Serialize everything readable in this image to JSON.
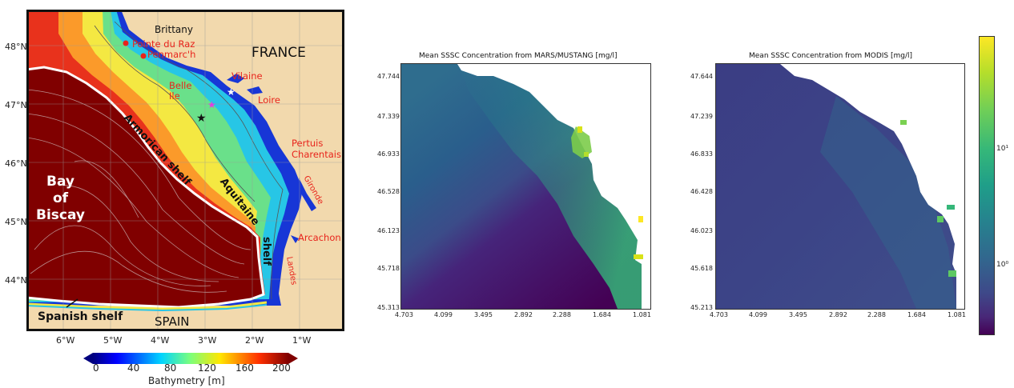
{
  "map": {
    "lat_ticks": [
      "48°N",
      "47°N",
      "46°N",
      "45°N",
      "44°N"
    ],
    "lon_ticks": [
      "6°W",
      "5°W",
      "4°W",
      "3°W",
      "2°W",
      "1°W"
    ],
    "labels_black": {
      "brittany": "Brittany",
      "france": "FRANCE",
      "bay_of_biscay": "Bay\nof\nBiscay",
      "armorican": "Armorican shelf",
      "aquitaine": "Aquitaine",
      "shelf": "shelf",
      "spanish": "Spanish shelf",
      "spain": "SPAIN"
    },
    "labels_red": {
      "pointe": "Pointe du Raz",
      "penmarch": "Penmarc'h",
      "belle": "Belle\nIle",
      "vilaine": "Vilaine",
      "loire": "Loire",
      "pertuis": "Pertuis\nCharentais",
      "gironde": "Gironde",
      "arcachon": "Arcachon",
      "landes": "Landes"
    },
    "colorbar": {
      "ticks": [
        "0",
        "40",
        "80",
        "120",
        "160",
        "200"
      ],
      "label": "Bathymetry [m]"
    },
    "colors": {
      "land": "#f2d9ad",
      "deep": "#800000",
      "accent": "#e8241c"
    }
  },
  "panel_mars": {
    "title": "Mean SSSC Concentration from MARS/MUSTANG [mg/l]",
    "y_ticks": [
      "47.744",
      "47.339",
      "46.933",
      "46.528",
      "46.123",
      "45.718",
      "45.313"
    ],
    "x_ticks": [
      "4.703",
      "4.099",
      "3.495",
      "2.892",
      "2.288",
      "1.684",
      "1.081"
    ]
  },
  "panel_modis": {
    "title": "Mean SSSC Concentration from MODIS [mg/l]",
    "y_ticks": [
      "47.644",
      "47.239",
      "46.833",
      "46.428",
      "46.023",
      "45.618",
      "45.213"
    ],
    "x_ticks": [
      "4.703",
      "4.099",
      "3.495",
      "2.892",
      "2.288",
      "1.684",
      "1.081"
    ]
  },
  "viridis_colorbar": {
    "tick_high": "10¹",
    "tick_low": "10⁰"
  }
}
